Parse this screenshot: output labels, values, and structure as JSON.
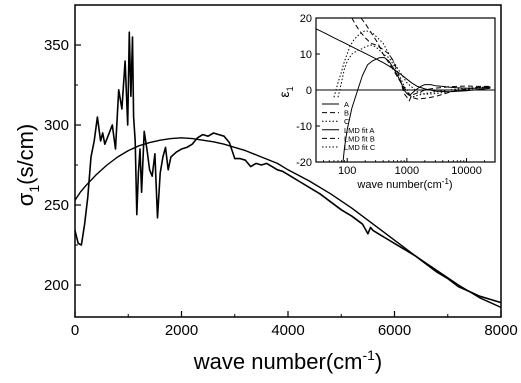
{
  "chart_data": [
    {
      "type": "line",
      "xlabel_main": "wave number(cm",
      "xlabel_sup": "-1",
      "xlabel_tail": ")",
      "ylabel_main": "σ",
      "ylabel_sub": "1",
      "ylabel_tail": "(s/cm)",
      "xlim": [
        0,
        8000
      ],
      "ylim": [
        180,
        375
      ],
      "xticks": [
        0,
        2000,
        4000,
        6000,
        8000
      ],
      "xtick_labels": [
        "0",
        "2000",
        "4000",
        "6000",
        "8000"
      ],
      "yticks": [
        200,
        250,
        300,
        350
      ],
      "ytick_labels": [
        "200",
        "250",
        "300",
        "350"
      ],
      "grid": false,
      "series": [
        {
          "x": [
            0,
            60,
            120,
            180,
            240,
            300,
            360,
            420,
            480,
            520,
            560,
            620,
            700,
            760,
            820,
            880,
            940,
            990,
            1020,
            1050,
            1080,
            1100,
            1130,
            1160,
            1190,
            1220,
            1250,
            1300,
            1350,
            1400,
            1450,
            1500,
            1550,
            1600,
            1650,
            1700,
            1750,
            1800,
            1900,
            2000,
            2100,
            2200,
            2300,
            2400,
            2500,
            2600,
            2700,
            2800,
            2900,
            3000,
            3100,
            3200,
            3300,
            3400,
            3500,
            3600,
            3700,
            3800,
            3900,
            4000,
            4200,
            4400,
            4600,
            4800,
            5000,
            5200,
            5400,
            5500,
            5550,
            5600,
            5700,
            5800,
            6000,
            6200,
            6400,
            6600,
            6800,
            7000,
            7200,
            7400,
            7600,
            7800,
            8000
          ],
          "y": [
            234,
            226,
            225,
            238,
            255,
            280,
            290,
            305,
            290,
            295,
            288,
            293,
            300,
            285,
            322,
            310,
            340,
            300,
            358,
            318,
            355,
            305,
            290,
            244,
            270,
            285,
            258,
            296,
            285,
            272,
            268,
            282,
            242,
            270,
            280,
            286,
            272,
            280,
            283,
            285,
            286,
            288,
            292,
            294,
            293,
            295,
            294,
            293,
            289,
            279,
            279,
            278,
            274,
            276,
            275,
            276,
            274,
            272,
            271,
            269,
            265,
            261,
            257,
            252,
            247,
            243,
            238,
            232,
            236,
            234,
            232,
            230,
            226,
            222,
            218,
            213,
            208,
            204,
            199,
            196,
            193,
            191,
            189
          ]
        },
        {
          "x": [
            0,
            100,
            200,
            400,
            600,
            800,
            1000,
            1200,
            1400,
            1600,
            1800,
            2000,
            2200,
            2400,
            2600,
            2800,
            3000,
            3200,
            3500,
            3800,
            4000,
            4400,
            4800,
            5200,
            5600,
            6000,
            6400,
            6800,
            7200,
            7600,
            8000
          ],
          "y": [
            253,
            258,
            262,
            269,
            275,
            280,
            284,
            287,
            289,
            290.5,
            291.5,
            292,
            291.5,
            290.5,
            289.5,
            288,
            286,
            284,
            280,
            276,
            272,
            265,
            257,
            248,
            238,
            228,
            218,
            209,
            200,
            192,
            186
          ]
        }
      ]
    },
    {
      "type": "line",
      "xlabel_main": "wave number(cm",
      "xlabel_sup": "-1",
      "xlabel_tail": ")",
      "ylabel_main": "ε",
      "ylabel_sub": "1",
      "xscale": "log",
      "xlim": [
        30,
        30000
      ],
      "ylim": [
        -20,
        20
      ],
      "xticks": [
        100,
        1000,
        10000
      ],
      "xtick_labels": [
        "100",
        "1000",
        "10000"
      ],
      "yticks": [
        -20,
        -10,
        0,
        10,
        20
      ],
      "ytick_labels": [
        "-20",
        "-10",
        "0",
        "10",
        "20"
      ],
      "grid": false,
      "legend": "lower-left",
      "series": [
        {
          "name": "A",
          "style": "solid",
          "x": [
            85,
            90,
            100,
            120,
            150,
            180,
            220,
            260,
            300,
            350,
            420,
            500,
            600,
            700,
            800,
            900,
            1000,
            1100,
            1200,
            1400,
            1700,
            2000,
            2500,
            3000,
            4000,
            5000,
            7000,
            10000,
            15000,
            20000,
            25000
          ],
          "y": [
            -20,
            -16,
            -11,
            -5,
            0,
            4,
            7,
            8,
            8.5,
            9,
            9,
            8,
            6,
            4,
            2,
            0,
            -1,
            -1.5,
            -1,
            0,
            1,
            1.5,
            1.5,
            1.2,
            1,
            0.8,
            0.6,
            0.5,
            0.5,
            0.6,
            0.7
          ]
        },
        {
          "name": "B",
          "style": "dashed",
          "x": [
            120,
            140,
            160,
            200,
            250,
            300,
            380,
            500,
            600,
            700,
            800,
            900,
            1000,
            1100,
            1200,
            1400,
            1700,
            2000,
            2500,
            3000,
            4000,
            5000,
            7000,
            10000,
            15000,
            20000,
            25000
          ],
          "y": [
            20,
            18,
            16.5,
            14.5,
            13,
            12.5,
            11.5,
            10,
            8,
            5,
            2,
            -1,
            -2,
            -3,
            -1.5,
            -1,
            -0.5,
            0,
            0.3,
            0.5,
            0.7,
            0.9,
            1,
            1.1,
            1,
            1,
            1
          ]
        },
        {
          "name": "C",
          "style": "dotted",
          "x": [
            70,
            80,
            90,
            100,
            120,
            150,
            180,
            200,
            250,
            300,
            350,
            400,
            500,
            600,
            700,
            800,
            900,
            1000,
            1100,
            1200,
            1500,
            2000,
            3000,
            5000,
            8000,
            12000,
            20000,
            25000
          ],
          "y": [
            -2,
            2,
            6,
            8,
            10,
            11,
            11.5,
            12,
            12.5,
            12,
            11,
            10,
            9,
            7,
            5,
            3,
            1,
            0,
            -1,
            -2,
            -1.5,
            -1,
            -0.5,
            0,
            0.4,
            0.6,
            0.8,
            0.9
          ]
        },
        {
          "name": "LMD fit A",
          "style": "solid",
          "x": [
            30,
            40,
            50,
            60,
            80,
            100,
            150,
            200,
            300,
            400,
            500,
            600,
            800,
            1000,
            1200,
            1500,
            2000,
            3000,
            5000,
            10000,
            20000,
            25000
          ],
          "y": [
            17,
            16,
            15.2,
            14.5,
            13.5,
            12.7,
            11.2,
            10.2,
            8.7,
            7.6,
            6.7,
            5.8,
            4.3,
            3,
            2,
            1,
            0.3,
            -0.3,
            -0.5,
            -0.2,
            0.3,
            0.5
          ]
        },
        {
          "name": "LMD fit B",
          "style": "dashed",
          "x": [
            170,
            200,
            250,
            300,
            350,
            400,
            500,
            600,
            700,
            800,
            1000,
            1200,
            1500,
            2000,
            3000,
            4000,
            5000,
            7000,
            10000,
            15000,
            25000
          ],
          "y": [
            20,
            18.5,
            16,
            14,
            12,
            10,
            7.5,
            5.5,
            3.5,
            2,
            -0.5,
            -2,
            -2.5,
            -2.3,
            -1.8,
            -1.2,
            -0.7,
            -0.2,
            0.3,
            0.7,
            1
          ]
        },
        {
          "name": "LMD fit C",
          "style": "dotted",
          "x": [
            60,
            70,
            80,
            90,
            100,
            110,
            130,
            160,
            200,
            260,
            300,
            400,
            500,
            700,
            1000,
            1500,
            2000,
            3000,
            5000,
            10000,
            20000,
            25000
          ],
          "y": [
            -2,
            2,
            5,
            8,
            10,
            12,
            14,
            15.5,
            16.5,
            16,
            15,
            13,
            10,
            6,
            2,
            -0.5,
            -1.2,
            -1,
            -0.5,
            0.2,
            0.6,
            0.8
          ]
        }
      ]
    }
  ]
}
